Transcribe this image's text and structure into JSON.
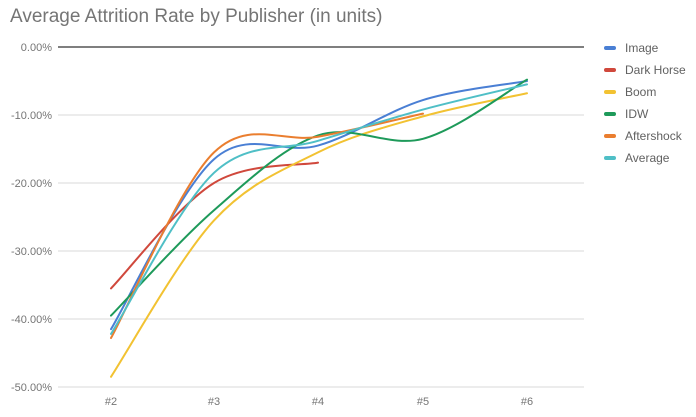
{
  "title": "Average Attrition Rate by Publisher (in units)",
  "legend": [
    {
      "name": "Image",
      "color": "#4A7FD4"
    },
    {
      "name": "Dark Horse",
      "color": "#D0483C"
    },
    {
      "name": "Boom",
      "color": "#F2C232"
    },
    {
      "name": "IDW",
      "color": "#1E9A5A"
    },
    {
      "name": "Aftershock",
      "color": "#EA7E2F"
    },
    {
      "name": "Average",
      "color": "#4FBFC6"
    }
  ],
  "y_ticks": [
    "0.00%",
    "-10.00%",
    "-20.00%",
    "-30.00%",
    "-40.00%",
    "-50.00%"
  ],
  "x_ticks": [
    "#2",
    "#3",
    "#4",
    "#5",
    "#6"
  ],
  "chart_data": {
    "type": "line",
    "title": "Average Attrition Rate by Publisher (in units)",
    "xlabel": "",
    "ylabel": "",
    "categories": [
      "#2",
      "#3",
      "#4",
      "#5",
      "#6"
    ],
    "ylim": [
      -50,
      0
    ],
    "y_format": "percent",
    "grid": true,
    "smooth": true,
    "legend_position": "right",
    "series": [
      {
        "name": "Image",
        "color": "#4A7FD4",
        "values": [
          -41.5,
          -16.5,
          -14.5,
          -7.8,
          -5.0
        ]
      },
      {
        "name": "Dark Horse",
        "color": "#D0483C",
        "values": [
          -35.5,
          -20.0,
          -17.0,
          null,
          null
        ]
      },
      {
        "name": "Boom",
        "color": "#F2C232",
        "values": [
          -48.5,
          -25.5,
          -15.5,
          -10.2,
          -6.8
        ]
      },
      {
        "name": "IDW",
        "color": "#1E9A5A",
        "values": [
          -39.5,
          -24.0,
          -13.0,
          -13.5,
          -4.8
        ]
      },
      {
        "name": "Aftershock",
        "color": "#EA7E2F",
        "values": [
          -42.8,
          -15.5,
          -13.2,
          -9.8,
          null
        ]
      },
      {
        "name": "Average",
        "color": "#4FBFC6",
        "values": [
          -42.2,
          -18.5,
          -13.8,
          -9.2,
          -5.5
        ]
      }
    ]
  }
}
